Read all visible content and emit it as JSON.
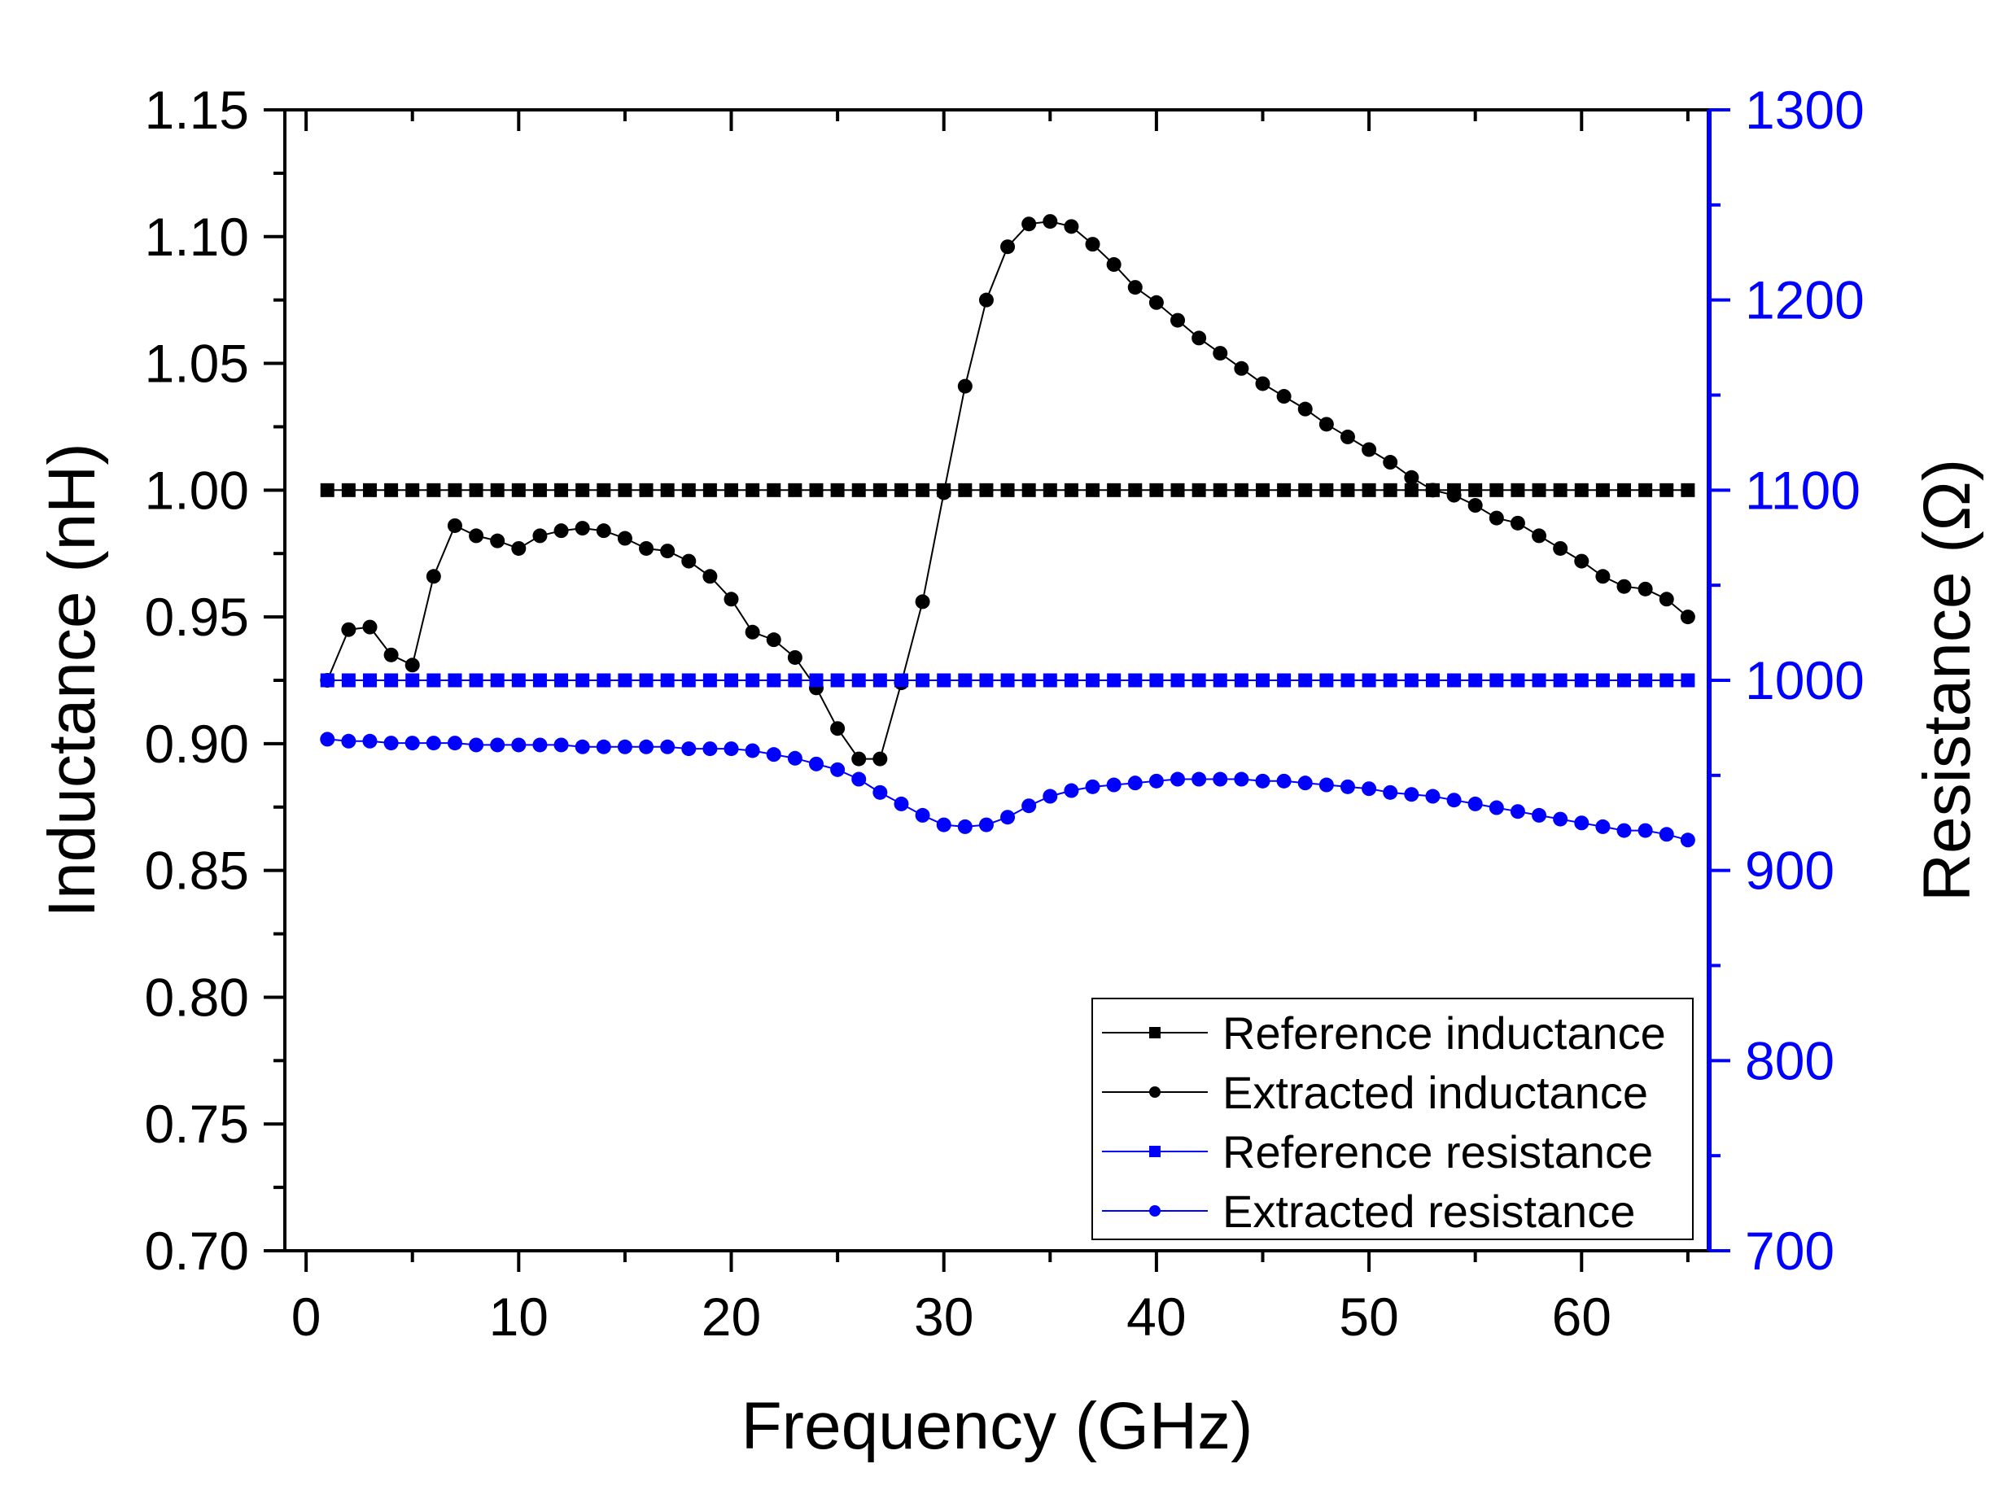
{
  "chart_data": {
    "type": "line",
    "title": "",
    "xlabel": "Frequency (GHz)",
    "ylabel": "Inductance (nH)",
    "y2label": "Resistance (Ω)",
    "xlim": [
      -1,
      66
    ],
    "ylim": [
      0.7,
      1.15
    ],
    "y2lim": [
      700,
      1300
    ],
    "x_ticks": [
      0,
      10,
      20,
      30,
      40,
      50,
      60
    ],
    "y_ticks": [
      "0.70",
      "0.75",
      "0.80",
      "0.85",
      "0.90",
      "0.95",
      "1.00",
      "1.05",
      "1.10",
      "1.15"
    ],
    "y2_ticks": [
      "700",
      "800",
      "900",
      "1000",
      "1100",
      "1200",
      "1300"
    ],
    "grid": false,
    "legend_position": "bottom-right",
    "colors": {
      "left_axis": "#000000",
      "right_axis": "#0000ff",
      "inductance": "#000000",
      "resistance": "#0000ff"
    },
    "x": [
      1,
      2,
      3,
      4,
      5,
      6,
      7,
      8,
      9,
      10,
      11,
      12,
      13,
      14,
      15,
      16,
      17,
      18,
      19,
      20,
      21,
      22,
      23,
      24,
      25,
      26,
      27,
      28,
      29,
      30,
      31,
      32,
      33,
      34,
      35,
      36,
      37,
      38,
      39,
      40,
      41,
      42,
      43,
      44,
      45,
      46,
      47,
      48,
      49,
      50,
      51,
      52,
      53,
      54,
      55,
      56,
      57,
      58,
      59,
      60,
      61,
      62,
      63,
      64,
      65
    ],
    "series": [
      {
        "name": "Reference inductance",
        "axis": "left",
        "marker": "square",
        "color": "#000000",
        "values": [
          1.0,
          1.0,
          1.0,
          1.0,
          1.0,
          1.0,
          1.0,
          1.0,
          1.0,
          1.0,
          1.0,
          1.0,
          1.0,
          1.0,
          1.0,
          1.0,
          1.0,
          1.0,
          1.0,
          1.0,
          1.0,
          1.0,
          1.0,
          1.0,
          1.0,
          1.0,
          1.0,
          1.0,
          1.0,
          1.0,
          1.0,
          1.0,
          1.0,
          1.0,
          1.0,
          1.0,
          1.0,
          1.0,
          1.0,
          1.0,
          1.0,
          1.0,
          1.0,
          1.0,
          1.0,
          1.0,
          1.0,
          1.0,
          1.0,
          1.0,
          1.0,
          1.0,
          1.0,
          1.0,
          1.0,
          1.0,
          1.0,
          1.0,
          1.0,
          1.0,
          1.0,
          1.0,
          1.0,
          1.0,
          1.0
        ]
      },
      {
        "name": "Extracted inductance",
        "axis": "left",
        "marker": "circle",
        "color": "#000000",
        "values": [
          0.925,
          0.945,
          0.946,
          0.935,
          0.931,
          0.966,
          0.986,
          0.982,
          0.98,
          0.977,
          0.982,
          0.984,
          0.985,
          0.984,
          0.981,
          0.977,
          0.976,
          0.972,
          0.966,
          0.957,
          0.944,
          0.941,
          0.934,
          0.922,
          0.906,
          0.894,
          0.894,
          0.924,
          0.956,
          0.999,
          1.041,
          1.075,
          1.096,
          1.105,
          1.106,
          1.104,
          1.097,
          1.089,
          1.08,
          1.074,
          1.067,
          1.06,
          1.054,
          1.048,
          1.042,
          1.037,
          1.032,
          1.026,
          1.021,
          1.016,
          1.011,
          1.005,
          1.0,
          0.998,
          0.994,
          0.989,
          0.987,
          0.982,
          0.977,
          0.972,
          0.966,
          0.962,
          0.961,
          0.957,
          0.95
        ]
      },
      {
        "name": "Reference resistance",
        "axis": "right",
        "marker": "square",
        "color": "#0000ff",
        "values": [
          1000,
          1000,
          1000,
          1000,
          1000,
          1000,
          1000,
          1000,
          1000,
          1000,
          1000,
          1000,
          1000,
          1000,
          1000,
          1000,
          1000,
          1000,
          1000,
          1000,
          1000,
          1000,
          1000,
          1000,
          1000,
          1000,
          1000,
          1000,
          1000,
          1000,
          1000,
          1000,
          1000,
          1000,
          1000,
          1000,
          1000,
          1000,
          1000,
          1000,
          1000,
          1000,
          1000,
          1000,
          1000,
          1000,
          1000,
          1000,
          1000,
          1000,
          1000,
          1000,
          1000,
          1000,
          1000,
          1000,
          1000,
          1000,
          1000,
          1000,
          1000,
          1000,
          1000,
          1000,
          1000
        ]
      },
      {
        "name": "Extracted resistance",
        "axis": "right",
        "marker": "circle",
        "color": "#0000ff",
        "values": [
          969,
          968,
          968,
          967,
          967,
          967,
          967,
          966,
          966,
          966,
          966,
          966,
          965,
          965,
          965,
          965,
          965,
          964,
          964,
          964,
          963,
          961,
          959,
          956,
          953,
          948,
          941,
          935,
          929,
          924,
          923,
          924,
          928,
          934,
          939,
          942,
          944,
          945,
          946,
          947,
          948,
          948,
          948,
          948,
          947,
          947,
          946,
          945,
          944,
          943,
          941,
          940,
          939,
          937,
          935,
          933,
          931,
          929,
          927,
          925,
          923,
          921,
          921,
          919,
          916
        ]
      }
    ]
  }
}
